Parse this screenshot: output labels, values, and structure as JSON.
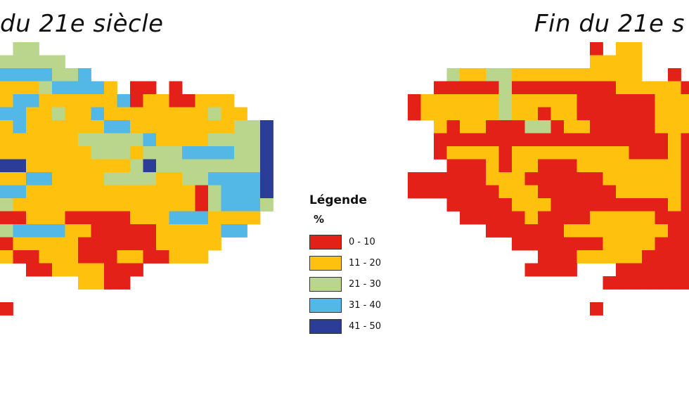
{
  "titles": {
    "left": "du 21e siècle",
    "right": "Fin du 21e s"
  },
  "legend": {
    "title": "Légende",
    "unit": "%",
    "items": [
      {
        "label": "0 - 10",
        "color": "#e32119"
      },
      {
        "label": "11 - 20",
        "color": "#fec20e"
      },
      {
        "label": "21 - 30",
        "color": "#b9d68c"
      },
      {
        "label": "31 - 40",
        "color": "#54b8e7"
      },
      {
        "label": "41 - 50",
        "color": "#2b3d96"
      }
    ]
  },
  "maps": {
    "left": {
      "rows": [
        ".cc..................",
        "ccccc................",
        "bbbbccb..............",
        "aaacbbbba.rr.r.......",
        "abbaaaaaabraarraaa...",
        "bbaacaabaaaaaaaacaa..",
        "abaaaaaabbaaaaaaaaccd",
        "aaaaaacccccbaaaaccccd",
        "aaaaaaacccacccbbbbccd",
        "ddaaaaaaaacdccccccccd",
        "aabbaaaaccccaaccbbbbd",
        "bbaaaaaaaaaaaaarcbbbd",
        "caaaaaaaaaaaaaarcbbbc",
        "rraaarrrrraaabbbaaaa.",
        "cbbbbaarrrrraaaaabb..",
        "raaaaarrrrrraaaaa....",
        "arraaarrraarraaa.....",
        "..rraaaarrr..........",
        "......aarr...........",
        ".....................",
        "r...................."
      ]
    },
    "right": {
      "rows": [
        "..............r.aa....",
        "..............aaaa....",
        "...caaccaaaaaaaaaa..r.",
        "..rrrrrcrrrrrrrraaaaar",
        "raaaaaacaaaaarrrrrraaa",
        "raaaaaacaaraarrrrrraaa",
        "..araarrrccraarrrrraaa",
        "..rrrrrrrrrrrrrrrrrrar",
        "..raaaaraaaaaaaaarrrar",
        "...rrraraarrraaaaaaaar",
        "rrrrrraaarrrrrraaaaaar",
        "rrrrrrraaarrrrrraaaaar",
        "...rrrrraaarrrrrrrrrar",
        "....rrrrrarrrraaaaarrr",
        "......rrrrrraaaaaaaarr",
        "........rrrrrrraaaarrr",
        "..........rrraaaaarrrr",
        ".........rrrr...rrrrrr",
        "...............rrrrrrr",
        "......................",
        "..............r......."
      ]
    }
  }
}
